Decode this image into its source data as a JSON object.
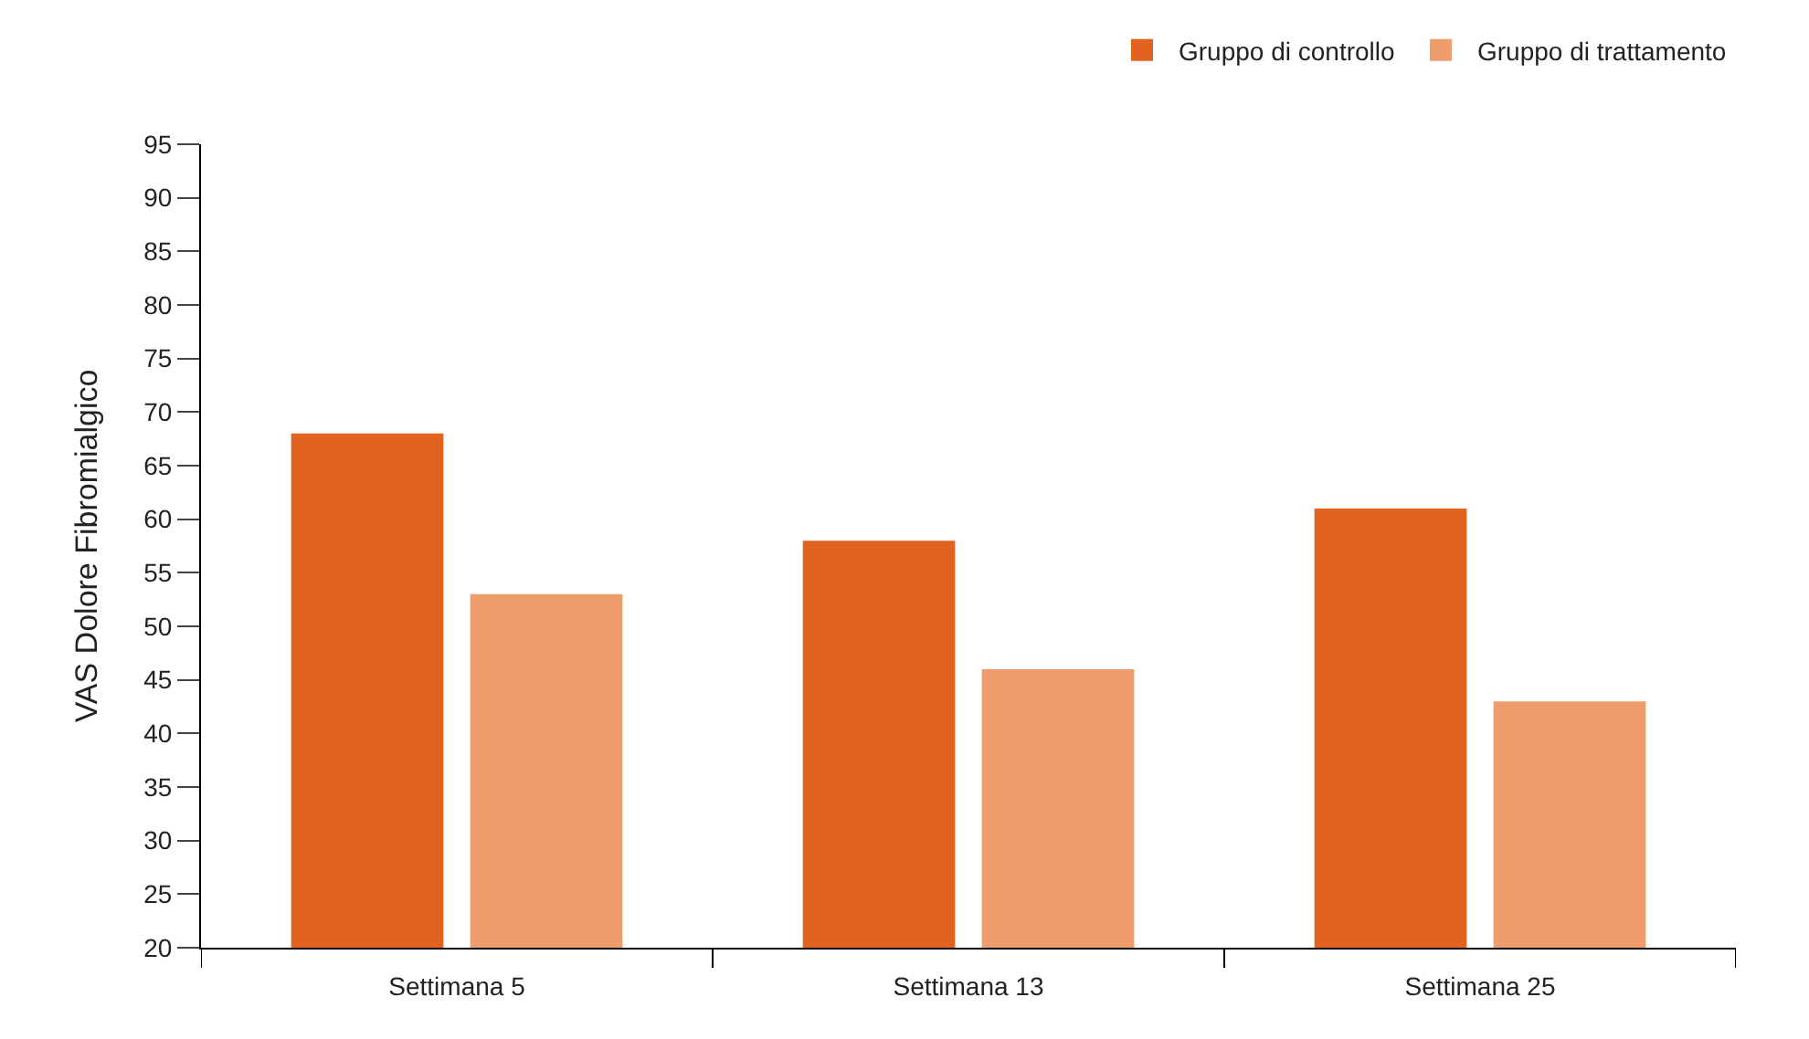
{
  "chart_data": {
    "type": "bar",
    "ylabel": "VAS Dolore Fibromialgico",
    "categories": [
      "Settimana 5",
      "Settimana 13",
      "Settimana 25"
    ],
    "series": [
      {
        "name": "Gruppo di controllo",
        "color": "#e2621f",
        "values": [
          68,
          58,
          61
        ]
      },
      {
        "name": "Gruppo di trattamento",
        "color": "#ef9d6c",
        "values": [
          53,
          46,
          43
        ]
      }
    ],
    "ylim": [
      20,
      95
    ],
    "yticks": [
      20,
      25,
      30,
      35,
      40,
      45,
      50,
      55,
      60,
      65,
      70,
      75,
      80,
      85,
      90,
      95
    ],
    "legend": "top right"
  }
}
